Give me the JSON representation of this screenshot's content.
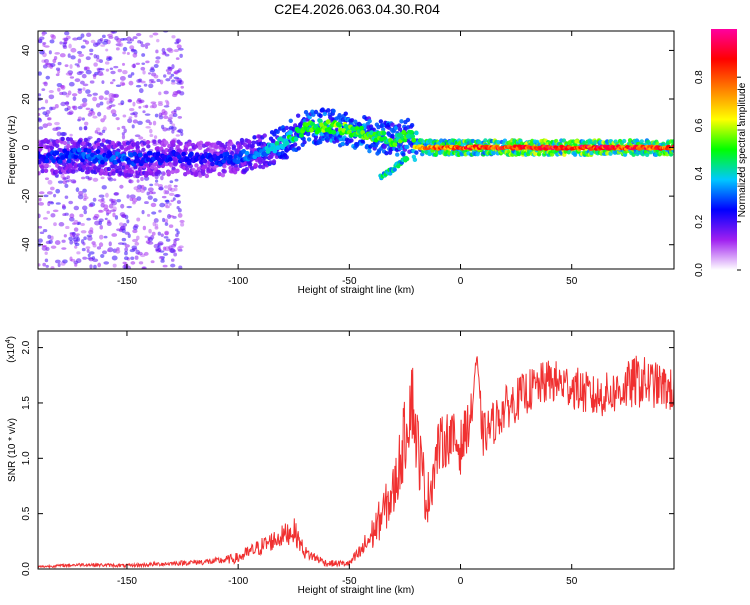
{
  "title": "C2E4.2026.063.04.30.R04",
  "chart_data": [
    {
      "type": "heatmap",
      "xlabel": "Height of straight line (km)",
      "ylabel": "Frequency (Hz)",
      "xlim": [
        -190,
        96
      ],
      "ylim": [
        -50,
        48
      ],
      "x_ticks": [
        -150,
        -100,
        -50,
        0,
        50
      ],
      "y_ticks": [
        -40,
        -20,
        0,
        20,
        40
      ],
      "colorbar": {
        "label": "Normalized spectral amplitude",
        "range": [
          0.0,
          1.0
        ],
        "ticks": [
          "0.0",
          "0.2",
          "0.4",
          "0.6",
          "0.8"
        ],
        "colormap": [
          "#ffffff",
          "#a020f0",
          "#0000ff",
          "#00c8ff",
          "#00ff00",
          "#ffff00",
          "#ff8000",
          "#ff0000",
          "#ff00a0"
        ]
      },
      "ridge": {
        "x": [
          -190,
          -170,
          -150,
          -130,
          -110,
          -100,
          -90,
          -80,
          -70,
          -60,
          -50,
          -40,
          -30,
          -22,
          -20,
          -10,
          0,
          10,
          30,
          60,
          96
        ],
        "frequency": [
          -4,
          -3,
          -5,
          -4,
          -5,
          -4,
          -2,
          2,
          8,
          9,
          7,
          5,
          3,
          5,
          0,
          0,
          0,
          0,
          0,
          0,
          0
        ],
        "amplitude": [
          0.25,
          0.3,
          0.3,
          0.25,
          0.25,
          0.3,
          0.35,
          0.45,
          0.5,
          0.55,
          0.55,
          0.5,
          0.5,
          0.5,
          0.7,
          0.8,
          0.85,
          0.85,
          0.9,
          0.9,
          0.85
        ]
      },
      "branch": {
        "x": [
          -36,
          -32,
          -28,
          -24
        ],
        "frequency": [
          -12,
          -10,
          -7,
          -4
        ]
      },
      "grid": false
    },
    {
      "type": "line",
      "xlabel": "Height of straight line (km)",
      "ylabel": "SNR (10 * v/v)",
      "multiplier": "(x10",
      "multiplier_exp": "4",
      "xlim": [
        -190,
        96
      ],
      "ylim": [
        0,
        2.15
      ],
      "x_ticks": [
        -150,
        -100,
        -50,
        0,
        50
      ],
      "y_ticks": [
        "0.0",
        "0.5",
        "1.0",
        "1.5",
        "2.0"
      ],
      "color": "#f03030",
      "envelope": {
        "x": [
          -190,
          -170,
          -150,
          -130,
          -110,
          -100,
          -90,
          -80,
          -75,
          -70,
          -60,
          -50,
          -45,
          -40,
          -35,
          -30,
          -25,
          -22,
          -20,
          -15,
          -10,
          -5,
          0,
          5,
          7,
          10,
          20,
          30,
          40,
          50,
          60,
          70,
          80,
          90,
          96
        ],
        "snr": [
          0.02,
          0.04,
          0.03,
          0.05,
          0.07,
          0.1,
          0.2,
          0.3,
          0.35,
          0.15,
          0.05,
          0.05,
          0.15,
          0.3,
          0.5,
          0.7,
          1.2,
          1.6,
          1.2,
          0.6,
          1.1,
          1.2,
          1.1,
          1.4,
          1.9,
          1.2,
          1.45,
          1.6,
          1.7,
          1.65,
          1.55,
          1.6,
          1.7,
          1.65,
          1.6
        ]
      },
      "fluctuation": [
        0.01,
        0.015,
        0.015,
        0.02,
        0.03,
        0.05,
        0.08,
        0.1,
        0.12,
        0.06,
        0.03,
        0.03,
        0.08,
        0.15,
        0.2,
        0.25,
        0.35,
        0.4,
        0.35,
        0.25,
        0.25,
        0.25,
        0.25,
        0.2,
        0.15,
        0.2,
        0.2,
        0.2,
        0.2,
        0.2,
        0.2,
        0.2,
        0.25,
        0.2,
        0.2
      ],
      "grid": false
    }
  ]
}
